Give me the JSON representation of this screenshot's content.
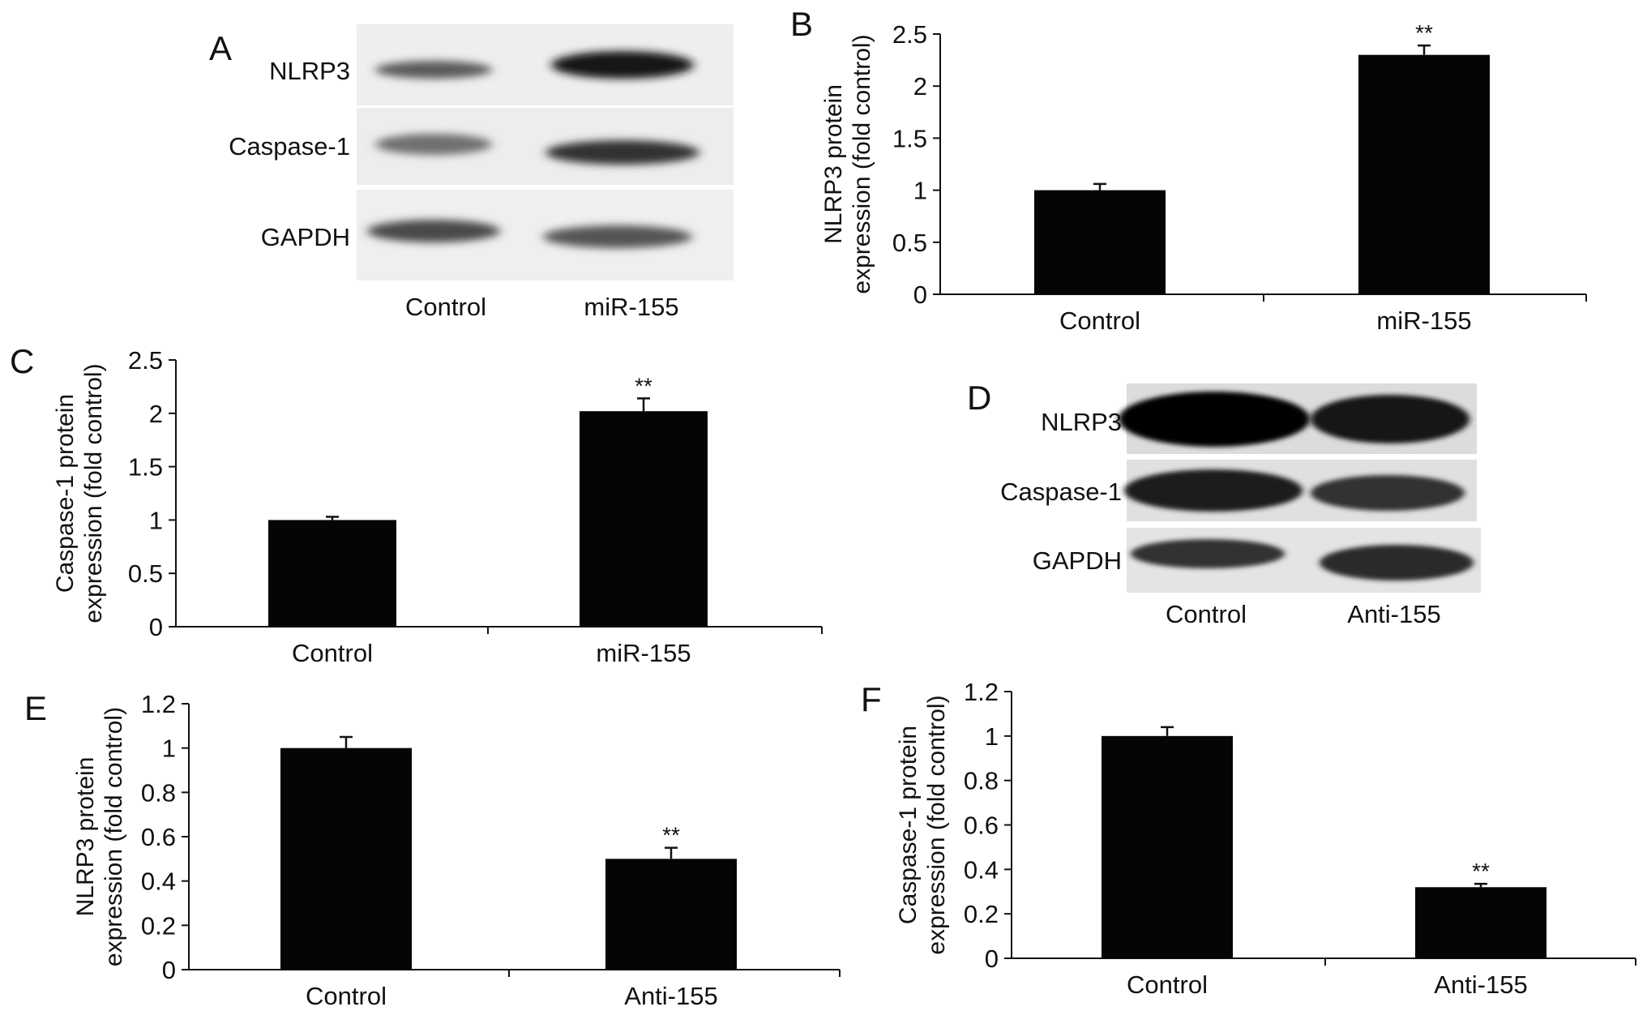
{
  "panel_labels": [
    "A",
    "B",
    "C",
    "D",
    "E",
    "F"
  ],
  "blot_a": {
    "row_labels": [
      "NLRP3",
      "Caspase-1",
      "GAPDH"
    ],
    "lane_labels": [
      "Control",
      "miR-155"
    ]
  },
  "blot_d": {
    "row_labels": [
      "NLRP3",
      "Caspase-1",
      "GAPDH"
    ],
    "lane_labels": [
      "Control",
      "Anti-155"
    ]
  },
  "chart_data": [
    {
      "panel": "B",
      "type": "bar",
      "categories": [
        "Control",
        "miR-155"
      ],
      "values": [
        1.0,
        2.3
      ],
      "errors": [
        0.06,
        0.09
      ],
      "annotations": [
        "",
        "**"
      ],
      "ylabel_line1": "NLRP3 protein",
      "ylabel_line2": "expression (fold control)",
      "ylim": [
        0,
        2.5
      ],
      "yticks": [
        "0",
        "0.5",
        "1",
        "1.5",
        "2",
        "2.5"
      ]
    },
    {
      "panel": "C",
      "type": "bar",
      "categories": [
        "Control",
        "miR-155"
      ],
      "values": [
        1.0,
        2.02
      ],
      "errors": [
        0.03,
        0.12
      ],
      "annotations": [
        "",
        "**"
      ],
      "ylabel_line1": "Caspase-1 protein",
      "ylabel_line2": "expression (fold control)",
      "ylim": [
        0,
        2.5
      ],
      "yticks": [
        "0",
        "0.5",
        "1",
        "1.5",
        "2",
        "2.5"
      ]
    },
    {
      "panel": "E",
      "type": "bar",
      "categories": [
        "Control",
        "Anti-155"
      ],
      "values": [
        1.0,
        0.5
      ],
      "errors": [
        0.05,
        0.05
      ],
      "annotations": [
        "",
        "**"
      ],
      "ylabel_line1": "NLRP3 protein",
      "ylabel_line2": "expression (fold control)",
      "ylim": [
        0,
        1.2
      ],
      "yticks": [
        "0",
        "0.2",
        "0.4",
        "0.6",
        "0.8",
        "1",
        "1.2"
      ]
    },
    {
      "panel": "F",
      "type": "bar",
      "categories": [
        "Control",
        "Anti-155"
      ],
      "values": [
        1.0,
        0.32
      ],
      "errors": [
        0.04,
        0.015
      ],
      "annotations": [
        "",
        "**"
      ],
      "ylabel_line1": "Caspase-1 protein",
      "ylabel_line2": "expression (fold control)",
      "ylim": [
        0,
        1.2
      ],
      "yticks": [
        "0",
        "0.2",
        "0.4",
        "0.6",
        "0.8",
        "1",
        "1.2"
      ]
    }
  ]
}
